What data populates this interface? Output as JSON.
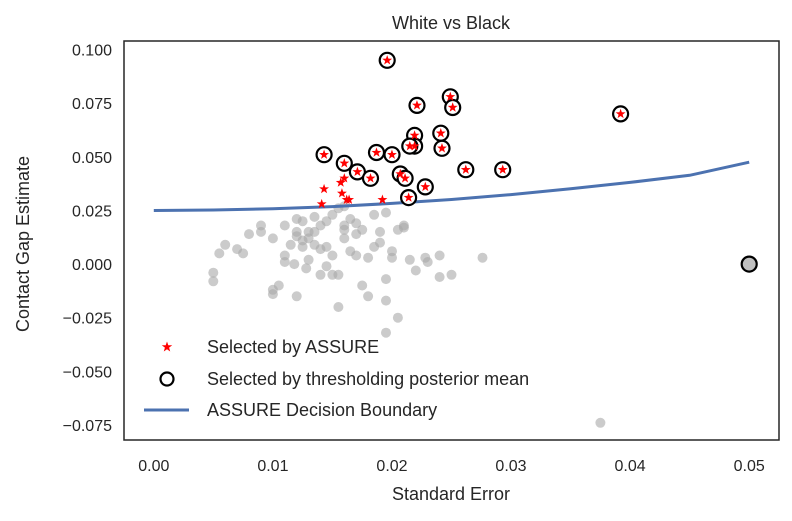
{
  "chart_data": {
    "type": "scatter",
    "title": "White vs Black",
    "xlabel": "Standard Error",
    "ylabel": "Contact Gap Estimate",
    "xlim": [
      -0.0025,
      0.0525
    ],
    "ylim": [
      -0.082,
      0.104
    ],
    "xticks": [
      0.0,
      0.01,
      0.02,
      0.03,
      0.04,
      0.05
    ],
    "xtick_labels": [
      "0.00",
      "0.01",
      "0.02",
      "0.03",
      "0.04",
      "0.05"
    ],
    "yticks": [
      -0.075,
      -0.05,
      -0.025,
      0.0,
      0.025,
      0.05,
      0.075,
      0.1
    ],
    "ytick_labels": [
      "−0.075",
      "−0.050",
      "−0.025",
      "0.000",
      "0.025",
      "0.050",
      "0.075",
      "0.100"
    ],
    "grid": false,
    "legend_position": "lower-left",
    "colors": {
      "gray_points": "#a9a9a9",
      "assure_star": "#ff0000",
      "threshold_circle": "#000000",
      "boundary_line": "#4c72b0",
      "highlight_point": "#c0c0c0"
    },
    "legend": [
      {
        "label": "Selected by ASSURE",
        "marker": "star"
      },
      {
        "label": "Selected by thresholding posterior mean",
        "marker": "circle"
      },
      {
        "label": "ASSURE Decision Boundary",
        "marker": "line"
      }
    ],
    "series": [
      {
        "name": "ASSURE Decision Boundary",
        "kind": "line",
        "x": [
          0.0,
          0.005,
          0.01,
          0.015,
          0.02,
          0.025,
          0.03,
          0.035,
          0.04,
          0.045,
          0.05
        ],
        "y": [
          0.025,
          0.0252,
          0.0258,
          0.0268,
          0.0283,
          0.0301,
          0.0324,
          0.0351,
          0.0381,
          0.0414,
          0.0475
        ]
      },
      {
        "name": "Selected by ASSURE",
        "kind": "star",
        "x": [
          0.0196,
          0.0249,
          0.0251,
          0.0221,
          0.0392,
          0.0241,
          0.0143,
          0.0187,
          0.0242,
          0.0262,
          0.0293,
          0.016,
          0.02,
          0.0219,
          0.0219,
          0.0215,
          0.0171,
          0.0182,
          0.0207,
          0.0211,
          0.0228,
          0.0214,
          0.0143,
          0.0157,
          0.016,
          0.0158,
          0.0162,
          0.0141,
          0.0164,
          0.0192
        ],
        "y": [
          0.095,
          0.078,
          0.073,
          0.074,
          0.07,
          0.061,
          0.051,
          0.052,
          0.054,
          0.044,
          0.044,
          0.047,
          0.051,
          0.06,
          0.055,
          0.055,
          0.043,
          0.04,
          0.042,
          0.04,
          0.036,
          0.031,
          0.035,
          0.038,
          0.04,
          0.033,
          0.03,
          0.028,
          0.03,
          0.03
        ]
      },
      {
        "name": "Selected by thresholding posterior mean",
        "kind": "circle",
        "x": [
          0.0196,
          0.0249,
          0.0251,
          0.0221,
          0.0392,
          0.0241,
          0.0143,
          0.0187,
          0.0242,
          0.0262,
          0.0293,
          0.016,
          0.02,
          0.0219,
          0.0219,
          0.0215,
          0.0171,
          0.0182,
          0.0207,
          0.0211,
          0.0228,
          0.0214,
          0.05
        ],
        "y": [
          0.095,
          0.078,
          0.073,
          0.074,
          0.07,
          0.061,
          0.051,
          0.052,
          0.054,
          0.044,
          0.044,
          0.047,
          0.051,
          0.06,
          0.055,
          0.055,
          0.043,
          0.04,
          0.042,
          0.04,
          0.036,
          0.031,
          0.0
        ]
      },
      {
        "name": "",
        "kind": "gray",
        "x": [
          0.005,
          0.0055,
          0.007,
          0.0075,
          0.009,
          0.01,
          0.0105,
          0.011,
          0.0115,
          0.0118,
          0.012,
          0.0125,
          0.0128,
          0.013,
          0.0135,
          0.014,
          0.0145,
          0.015,
          0.0155,
          0.016,
          0.0165,
          0.017,
          0.0175,
          0.018,
          0.0185,
          0.019,
          0.0195,
          0.02,
          0.0205,
          0.021,
          0.0215,
          0.022,
          0.023,
          0.024,
          0.025,
          0.011,
          0.012,
          0.013,
          0.014,
          0.01,
          0.012,
          0.015,
          0.016,
          0.0175,
          0.019,
          0.0205,
          0.0135,
          0.0145,
          0.0165,
          0.018,
          0.0195,
          0.0125,
          0.0155,
          0.017,
          0.02,
          0.0228,
          0.006,
          0.008,
          0.009,
          0.011,
          0.013,
          0.0145,
          0.016,
          0.0185,
          0.021,
          0.024,
          0.0276,
          0.0195,
          0.015,
          0.014,
          0.01,
          0.005,
          0.012,
          0.0135,
          0.0155,
          0.017,
          0.0125,
          0.016,
          0.0195,
          0.0375,
          0.05
        ],
        "y": [
          -0.004,
          0.005,
          0.007,
          0.005,
          0.015,
          0.012,
          -0.01,
          0.018,
          0.009,
          0.0,
          0.021,
          0.008,
          -0.002,
          0.012,
          0.015,
          0.018,
          0.008,
          0.004,
          -0.005,
          0.012,
          0.006,
          0.004,
          0.016,
          0.003,
          0.008,
          0.01,
          -0.017,
          0.003,
          0.016,
          0.018,
          0.002,
          -0.003,
          0.001,
          -0.006,
          -0.005,
          0.001,
          -0.015,
          0.002,
          0.007,
          -0.012,
          0.013,
          -0.005,
          0.018,
          -0.01,
          0.015,
          -0.025,
          0.022,
          -0.001,
          0.021,
          -0.015,
          -0.007,
          0.02,
          -0.02,
          0.014,
          0.006,
          0.003,
          0.009,
          0.014,
          0.018,
          0.004,
          0.015,
          0.02,
          0.016,
          0.023,
          0.017,
          0.004,
          0.003,
          -0.032,
          0.023,
          -0.005,
          -0.014,
          -0.008,
          0.015,
          0.009,
          0.026,
          0.019,
          0.011,
          0.027,
          0.024,
          -0.074,
          0.0
        ]
      }
    ]
  }
}
